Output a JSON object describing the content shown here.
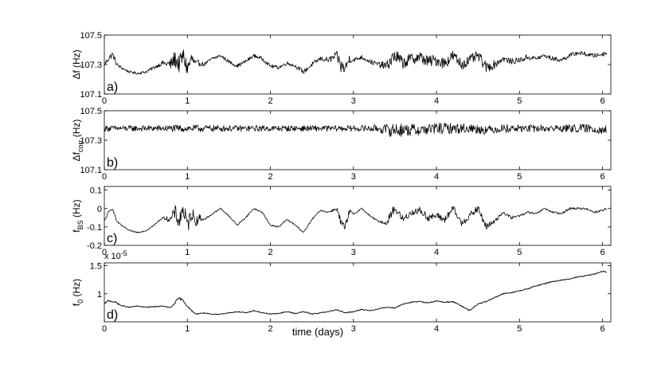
{
  "chart_data": [
    {
      "type": "line",
      "panel_label": "a)",
      "ylabel": "Δf (Hz)",
      "ylabel_main": "Δf (Hz)",
      "ylabel_sub": "",
      "ylabel_tail": "",
      "xlim": [
        0,
        6.1
      ],
      "ylim": [
        107.1,
        107.5
      ],
      "xticks": [
        "0",
        "1",
        "2",
        "3",
        "4",
        "5",
        "6"
      ],
      "yticks": [
        "107.1",
        "107.3",
        "107.5"
      ],
      "ytick_values": [
        107.1,
        107.3,
        107.5
      ],
      "series": [
        {
          "x": [
            0,
            0.05,
            0.1,
            0.15,
            0.2,
            0.3,
            0.4,
            0.5,
            0.6,
            0.7,
            0.8,
            0.85,
            0.9,
            0.95,
            1.0,
            1.05,
            1.1,
            1.15,
            1.2,
            1.3,
            1.4,
            1.5,
            1.6,
            1.7,
            1.8,
            1.9,
            2.0,
            2.1,
            2.2,
            2.3,
            2.4,
            2.5,
            2.6,
            2.7,
            2.8,
            2.85,
            2.9,
            2.95,
            3.0,
            3.1,
            3.2,
            3.3,
            3.4,
            3.45,
            3.5,
            3.6,
            3.7,
            3.8,
            3.9,
            4.0,
            4.1,
            4.2,
            4.3,
            4.4,
            4.5,
            4.6,
            4.7,
            4.8,
            4.9,
            5.0,
            5.1,
            5.2,
            5.3,
            5.4,
            5.5,
            5.6,
            5.7,
            5.8,
            5.9,
            6.0,
            6.05
          ],
          "y": [
            107.3,
            107.34,
            107.37,
            107.3,
            107.28,
            107.25,
            107.24,
            107.25,
            107.28,
            107.31,
            107.3,
            107.34,
            107.3,
            107.36,
            107.27,
            107.34,
            107.3,
            107.31,
            107.3,
            107.34,
            107.36,
            107.32,
            107.29,
            107.32,
            107.36,
            107.34,
            107.29,
            107.28,
            107.31,
            107.29,
            107.25,
            107.3,
            107.34,
            107.33,
            107.36,
            107.29,
            107.27,
            107.34,
            107.33,
            107.35,
            107.32,
            107.3,
            107.29,
            107.33,
            107.36,
            107.31,
            107.34,
            107.35,
            107.32,
            107.33,
            107.31,
            107.36,
            107.3,
            107.33,
            107.36,
            107.28,
            107.3,
            107.34,
            107.32,
            107.33,
            107.35,
            107.34,
            107.36,
            107.34,
            107.33,
            107.36,
            107.38,
            107.37,
            107.36,
            107.37,
            107.38
          ],
          "spread": [
            0.01,
            0.02,
            0.02,
            0.015,
            0.01,
            0.008,
            0.008,
            0.01,
            0.012,
            0.015,
            0.04,
            0.06,
            0.06,
            0.06,
            0.06,
            0.05,
            0.03,
            0.02,
            0.012,
            0.012,
            0.012,
            0.012,
            0.012,
            0.012,
            0.012,
            0.012,
            0.012,
            0.012,
            0.012,
            0.012,
            0.015,
            0.015,
            0.015,
            0.02,
            0.03,
            0.05,
            0.04,
            0.03,
            0.015,
            0.015,
            0.015,
            0.02,
            0.03,
            0.05,
            0.05,
            0.04,
            0.04,
            0.04,
            0.04,
            0.04,
            0.04,
            0.04,
            0.04,
            0.035,
            0.035,
            0.035,
            0.03,
            0.02,
            0.02,
            0.02,
            0.02,
            0.015,
            0.015,
            0.015,
            0.015,
            0.015,
            0.015,
            0.015,
            0.015,
            0.015,
            0.015
          ]
        }
      ]
    },
    {
      "type": "line",
      "panel_label": "b)",
      "ylabel": "Δfcorr (Hz)",
      "ylabel_main": "Δf",
      "ylabel_sub": "corr",
      "ylabel_tail": " (Hz)",
      "xlim": [
        0,
        6.1
      ],
      "ylim": [
        107.1,
        107.5
      ],
      "xticks": [
        "0",
        "1",
        "2",
        "3",
        "4",
        "5",
        "6"
      ],
      "yticks": [
        "107.1",
        "107.3",
        "107.5"
      ],
      "ytick_values": [
        107.1,
        107.3,
        107.5
      ],
      "series": [
        {
          "x": [
            0,
            0.5,
            1.0,
            1.5,
            2.0,
            2.5,
            3.0,
            3.3,
            3.4,
            3.5,
            3.6,
            3.8,
            4.0,
            4.2,
            4.4,
            4.6,
            4.8,
            5.0,
            5.2,
            5.5,
            5.8,
            6.05
          ],
          "y": [
            107.38,
            107.38,
            107.38,
            107.38,
            107.38,
            107.38,
            107.38,
            107.38,
            107.37,
            107.37,
            107.37,
            107.37,
            107.38,
            107.38,
            107.38,
            107.37,
            107.38,
            107.38,
            107.38,
            107.38,
            107.38,
            107.37
          ],
          "spread": [
            0.02,
            0.02,
            0.025,
            0.02,
            0.02,
            0.02,
            0.02,
            0.025,
            0.04,
            0.05,
            0.045,
            0.04,
            0.04,
            0.035,
            0.035,
            0.03,
            0.03,
            0.025,
            0.025,
            0.025,
            0.03,
            0.03
          ]
        }
      ]
    },
    {
      "type": "line",
      "panel_label": "c)",
      "ylabel": "fBS (Hz)",
      "ylabel_main": "f",
      "ylabel_sub": "BS",
      "ylabel_tail": " (Hz)",
      "xlim": [
        0,
        6.1
      ],
      "ylim": [
        -0.2,
        0.12
      ],
      "xticks": [
        "0",
        "1",
        "2",
        "3",
        "4",
        "5",
        "6"
      ],
      "yticks": [
        "-0.2",
        "-0.1",
        "0",
        "0.1"
      ],
      "ytick_values": [
        -0.2,
        -0.1,
        0,
        0.1
      ],
      "series": [
        {
          "x": [
            0,
            0.05,
            0.1,
            0.15,
            0.2,
            0.3,
            0.4,
            0.5,
            0.6,
            0.7,
            0.8,
            0.85,
            0.9,
            0.95,
            1.0,
            1.05,
            1.1,
            1.15,
            1.2,
            1.3,
            1.4,
            1.5,
            1.6,
            1.7,
            1.8,
            1.9,
            2.0,
            2.1,
            2.2,
            2.3,
            2.4,
            2.5,
            2.6,
            2.7,
            2.8,
            2.85,
            2.9,
            2.95,
            3.0,
            3.1,
            3.2,
            3.3,
            3.4,
            3.45,
            3.5,
            3.6,
            3.7,
            3.8,
            3.9,
            4.0,
            4.1,
            4.2,
            4.3,
            4.4,
            4.5,
            4.6,
            4.7,
            4.8,
            4.9,
            5.0,
            5.1,
            5.2,
            5.3,
            5.4,
            5.5,
            5.6,
            5.7,
            5.8,
            5.9,
            6.0,
            6.05
          ],
          "y": [
            -0.07,
            -0.02,
            0.0,
            -0.07,
            -0.09,
            -0.12,
            -0.13,
            -0.12,
            -0.09,
            -0.05,
            -0.06,
            -0.02,
            -0.07,
            0.0,
            -0.1,
            -0.02,
            -0.07,
            -0.05,
            -0.06,
            -0.03,
            0.0,
            -0.04,
            -0.09,
            -0.05,
            -0.0,
            -0.02,
            -0.09,
            -0.1,
            -0.06,
            -0.09,
            -0.13,
            -0.06,
            -0.01,
            -0.02,
            0.0,
            -0.08,
            -0.11,
            -0.02,
            -0.03,
            0.0,
            -0.04,
            -0.07,
            -0.08,
            -0.03,
            0.0,
            -0.06,
            -0.02,
            -0.01,
            -0.05,
            -0.04,
            -0.06,
            0.0,
            -0.08,
            -0.04,
            0.0,
            -0.1,
            -0.07,
            -0.02,
            -0.05,
            -0.04,
            -0.02,
            -0.03,
            0.0,
            -0.02,
            -0.03,
            0.0,
            0.0,
            -0.0,
            -0.02,
            -0.01,
            -0.0
          ],
          "spread": [
            0.005,
            0.005,
            0.005,
            0.005,
            0.004,
            0.004,
            0.004,
            0.004,
            0.004,
            0.004,
            0.02,
            0.04,
            0.05,
            0.05,
            0.05,
            0.04,
            0.03,
            0.02,
            0.005,
            0.004,
            0.004,
            0.004,
            0.004,
            0.004,
            0.004,
            0.004,
            0.004,
            0.004,
            0.004,
            0.004,
            0.004,
            0.004,
            0.004,
            0.004,
            0.01,
            0.03,
            0.03,
            0.02,
            0.005,
            0.004,
            0.004,
            0.004,
            0.01,
            0.03,
            0.02,
            0.02,
            0.02,
            0.02,
            0.02,
            0.02,
            0.02,
            0.02,
            0.02,
            0.02,
            0.02,
            0.02,
            0.01,
            0.008,
            0.008,
            0.006,
            0.006,
            0.006,
            0.006,
            0.006,
            0.006,
            0.006,
            0.006,
            0.006,
            0.006,
            0.006,
            0.006
          ]
        }
      ]
    },
    {
      "type": "line",
      "panel_label": "d)",
      "ylabel": "f0 (Hz)",
      "ylabel_main": "f",
      "ylabel_sub": "0",
      "ylabel_tail": " (Hz)",
      "exponent_label": "x 10",
      "exponent_power": "-5",
      "xlabel": "time (days)",
      "xlim": [
        0,
        6.1
      ],
      "ylim": [
        0.5,
        1.55
      ],
      "xticks": [
        "0",
        "1",
        "2",
        "3",
        "4",
        "5",
        "6"
      ],
      "yticks": [
        "1",
        "1.5"
      ],
      "ytick_values": [
        1.0,
        1.5
      ],
      "series": [
        {
          "x": [
            0,
            0.05,
            0.1,
            0.15,
            0.2,
            0.3,
            0.4,
            0.5,
            0.6,
            0.7,
            0.8,
            0.85,
            0.9,
            0.95,
            1.0,
            1.05,
            1.1,
            1.2,
            1.3,
            1.4,
            1.5,
            1.6,
            1.7,
            1.8,
            1.9,
            2.0,
            2.1,
            2.2,
            2.3,
            2.4,
            2.5,
            2.6,
            2.7,
            2.8,
            2.9,
            3.0,
            3.1,
            3.2,
            3.3,
            3.4,
            3.5,
            3.6,
            3.7,
            3.8,
            3.9,
            4.0,
            4.1,
            4.2,
            4.3,
            4.4,
            4.5,
            4.6,
            4.7,
            4.8,
            4.9,
            5.0,
            5.1,
            5.2,
            5.3,
            5.4,
            5.5,
            5.6,
            5.7,
            5.8,
            5.9,
            6.0,
            6.05
          ],
          "y": [
            0.82,
            0.88,
            0.86,
            0.84,
            0.79,
            0.76,
            0.78,
            0.76,
            0.77,
            0.78,
            0.75,
            0.84,
            0.92,
            0.88,
            0.78,
            0.7,
            0.64,
            0.66,
            0.63,
            0.64,
            0.66,
            0.68,
            0.66,
            0.7,
            0.66,
            0.64,
            0.65,
            0.68,
            0.65,
            0.68,
            0.64,
            0.66,
            0.68,
            0.72,
            0.66,
            0.68,
            0.72,
            0.7,
            0.73,
            0.76,
            0.75,
            0.82,
            0.85,
            0.86,
            0.84,
            0.87,
            0.85,
            0.86,
            0.78,
            0.7,
            0.82,
            0.86,
            0.93,
            1.0,
            1.02,
            1.05,
            1.09,
            1.14,
            1.18,
            1.22,
            1.24,
            1.26,
            1.3,
            1.32,
            1.35,
            1.4,
            1.39
          ],
          "spread": [
            0.01,
            0.015,
            0.015,
            0.015,
            0.01,
            0.008,
            0.008,
            0.008,
            0.008,
            0.008,
            0.01,
            0.02,
            0.02,
            0.02,
            0.012,
            0.01,
            0.008,
            0.008,
            0.008,
            0.008,
            0.008,
            0.008,
            0.008,
            0.008,
            0.008,
            0.008,
            0.008,
            0.008,
            0.008,
            0.008,
            0.008,
            0.008,
            0.008,
            0.01,
            0.01,
            0.008,
            0.008,
            0.008,
            0.008,
            0.008,
            0.01,
            0.01,
            0.01,
            0.01,
            0.01,
            0.01,
            0.01,
            0.01,
            0.01,
            0.01,
            0.01,
            0.01,
            0.01,
            0.01,
            0.01,
            0.01,
            0.01,
            0.01,
            0.01,
            0.01,
            0.01,
            0.01,
            0.01,
            0.01,
            0.01,
            0.01,
            0.01
          ]
        }
      ]
    }
  ]
}
